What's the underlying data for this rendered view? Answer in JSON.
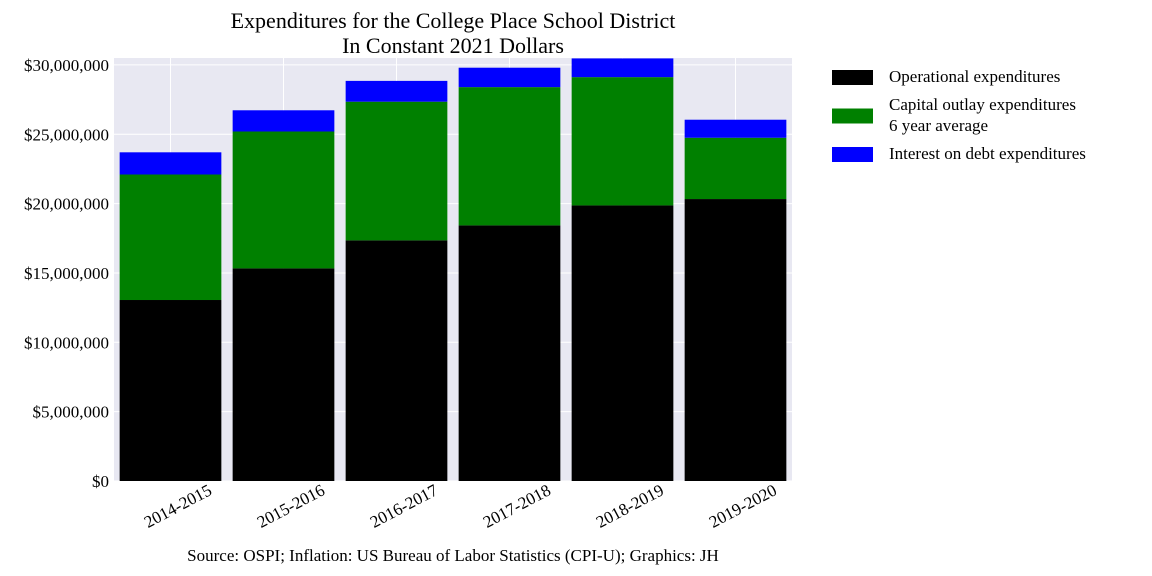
{
  "chart_data": {
    "type": "bar",
    "stacked": true,
    "title": "Expenditures for the College Place School District",
    "subtitle": "In Constant 2021 Dollars",
    "xlabel": "",
    "ylabel": "",
    "categories": [
      "2014-2015",
      "2015-2016",
      "2016-2017",
      "2017-2018",
      "2018-2019",
      "2019-2020"
    ],
    "series": [
      {
        "name": "Operational expenditures",
        "color": "#000000",
        "values": [
          13050000,
          15330000,
          17350000,
          18430000,
          19870000,
          20330000
        ]
      },
      {
        "name": "Capital outlay expenditures\n6 year average",
        "color": "#008000",
        "values": [
          9050000,
          9870000,
          10000000,
          9970000,
          9250000,
          4420000
        ]
      },
      {
        "name": "Interest on debt expenditures",
        "color": "#0000ff",
        "values": [
          1600000,
          1530000,
          1500000,
          1400000,
          1350000,
          1300000
        ]
      }
    ],
    "ylim": [
      0,
      30500000
    ],
    "yticks": [
      0,
      5000000,
      10000000,
      15000000,
      20000000,
      25000000,
      30000000
    ],
    "ytick_labels": [
      "$0",
      "$5,000,000",
      "$10,000,000",
      "$15,000,000",
      "$20,000,000",
      "$25,000,000",
      "$30,000,000"
    ],
    "grid": true,
    "plot_background": "#e8e8f2",
    "legend_position": "outside-right",
    "source": "Source: OSPI; Inflation: US Bureau of Labor Statistics (CPI-U); Graphics: JH"
  }
}
